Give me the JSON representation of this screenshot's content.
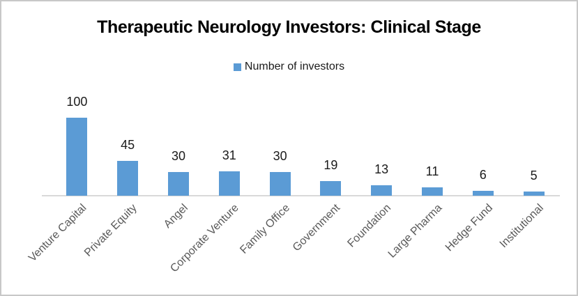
{
  "page": {
    "title": "Therapeutic Neurology Investors: Clinical Stage"
  },
  "legend": {
    "label": "Number of investors"
  },
  "colors": {
    "bar": "#5B9BD5",
    "axis_line": "#D9D9D9",
    "category_label": "#595959",
    "value_label": "#1A1A1A",
    "title": "#000000",
    "frame_border": "#C8C8C8"
  },
  "chart_data": {
    "type": "bar",
    "title": "Therapeutic Neurology Investors: Clinical Stage",
    "categories": [
      "Venture Capital",
      "Private Equity",
      "Angel",
      "Corporate Venture",
      "Family Office",
      "Government",
      "Foundation",
      "Large Pharma",
      "Hedge Fund",
      "Institutional"
    ],
    "values": [
      100,
      45,
      30,
      31,
      30,
      19,
      13,
      11,
      6,
      5
    ],
    "series": [
      {
        "name": "Number of investors",
        "values": [
          100,
          45,
          30,
          31,
          30,
          19,
          13,
          11,
          6,
          5
        ]
      }
    ],
    "xlabel": "",
    "ylabel": "",
    "ylim": [
      0,
      110
    ],
    "grid": false,
    "y_axis_visible": false,
    "data_labels": true,
    "legend_entries": [
      "Number of investors"
    ],
    "legend_position": "top-center",
    "category_label_rotation_deg": 45,
    "bar_color": "#5B9BD5"
  }
}
